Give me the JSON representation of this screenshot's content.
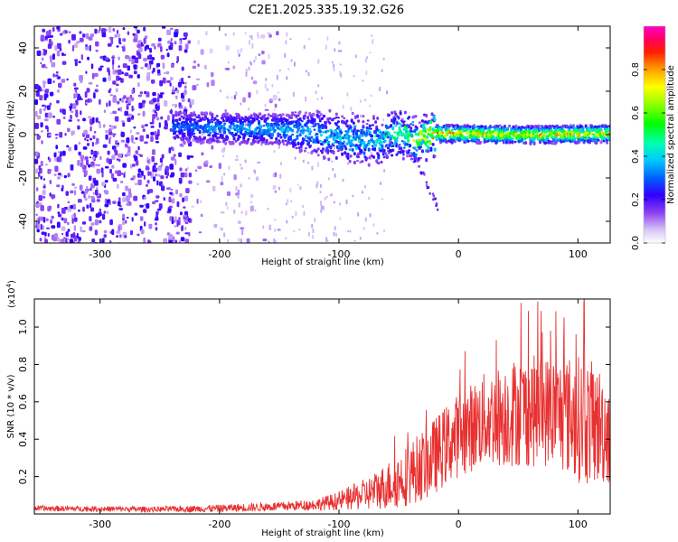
{
  "title": "C2E1.2025.335.19.32.G26",
  "chart_data": [
    {
      "type": "heatmap",
      "xlabel": "Height of straight line (km)",
      "ylabel": "Frequency (Hz)",
      "xlim": [
        -355,
        127
      ],
      "ylim": [
        -50,
        50
      ],
      "xticks": [
        -300,
        -200,
        -100,
        0,
        100
      ],
      "xtick_labels": [
        "-300",
        "-200",
        "-100",
        "0",
        "100"
      ],
      "yticks": [
        -40,
        -20,
        0,
        20,
        40
      ],
      "ytick_labels": [
        "-40",
        "-20",
        "0",
        "20",
        "40"
      ],
      "colorbar": {
        "label": "Normalized spectral amplitude",
        "range": [
          0,
          1
        ],
        "ticks": [
          0.0,
          0.2,
          0.4,
          0.6,
          0.8
        ],
        "tick_labels": [
          "0.0",
          "0.2",
          "0.4",
          "0.6",
          "0.8"
        ],
        "colormap": "rainbow"
      },
      "band_center_hz": [
        {
          "x": -235,
          "f": 3.5
        },
        {
          "x": -200,
          "f": 3
        },
        {
          "x": -150,
          "f": 2.5
        },
        {
          "x": -100,
          "f": -1
        },
        {
          "x": -70,
          "f": -3
        },
        {
          "x": -50,
          "f": 1
        },
        {
          "x": -40,
          "f": -2
        },
        {
          "x": -20,
          "f": 0.5
        },
        {
          "x": 0,
          "f": 0.5
        },
        {
          "x": 50,
          "f": 0
        },
        {
          "x": 127,
          "f": 0.5
        }
      ],
      "band_peak_amplitude": [
        {
          "x": -235,
          "a": 0.35
        },
        {
          "x": -150,
          "a": 0.45
        },
        {
          "x": -60,
          "a": 0.5
        },
        {
          "x": -20,
          "a": 0.95
        },
        {
          "x": 0,
          "a": 0.95
        },
        {
          "x": 50,
          "a": 0.9
        },
        {
          "x": 127,
          "a": 0.9
        }
      ],
      "noise_region_x": [
        -355,
        -150
      ],
      "secondary_trace": [
        {
          "x": -60,
          "f": -2
        },
        {
          "x": -35,
          "f": -12
        },
        {
          "x": -25,
          "f": -25
        },
        {
          "x": -18,
          "f": -33
        }
      ],
      "grid": false
    },
    {
      "type": "line",
      "xlabel": "Height of straight line (km)",
      "ylabel": "SNR (10 * v/v)",
      "y_multiplier": "(x10",
      "y_multiplier_exp": "4",
      "y_multiplier_close": ")",
      "xlim": [
        -355,
        127
      ],
      "ylim": [
        0,
        1.15
      ],
      "xticks": [
        -300,
        -200,
        -100,
        0,
        100
      ],
      "xtick_labels": [
        "-300",
        "-200",
        "-100",
        "0",
        "100"
      ],
      "yticks": [
        0.2,
        0.4,
        0.6,
        0.8,
        1.0
      ],
      "ytick_labels": [
        "0.2",
        "0.4",
        "0.6",
        "0.8",
        "1.0"
      ],
      "series": [
        {
          "color": "#e83030",
          "envelope": [
            {
              "x": -355,
              "base": 0.03,
              "amp": 0.015
            },
            {
              "x": -250,
              "base": 0.025,
              "amp": 0.015
            },
            {
              "x": -200,
              "base": 0.03,
              "amp": 0.02
            },
            {
              "x": -150,
              "base": 0.04,
              "amp": 0.025
            },
            {
              "x": -120,
              "base": 0.05,
              "amp": 0.03
            },
            {
              "x": -100,
              "base": 0.07,
              "amp": 0.05
            },
            {
              "x": -75,
              "base": 0.11,
              "amp": 0.09
            },
            {
              "x": -50,
              "base": 0.18,
              "amp": 0.15
            },
            {
              "x": -25,
              "base": 0.28,
              "amp": 0.2
            },
            {
              "x": -5,
              "base": 0.4,
              "amp": 0.22
            },
            {
              "x": 20,
              "base": 0.5,
              "amp": 0.25
            },
            {
              "x": 50,
              "base": 0.55,
              "amp": 0.3
            },
            {
              "x": 80,
              "base": 0.55,
              "amp": 0.3
            },
            {
              "x": 105,
              "base": 0.5,
              "amp": 0.35
            },
            {
              "x": 127,
              "base": 0.45,
              "amp": 0.3
            }
          ],
          "peak": {
            "x": 105,
            "y": 1.13
          }
        }
      ],
      "grid": false
    }
  ]
}
